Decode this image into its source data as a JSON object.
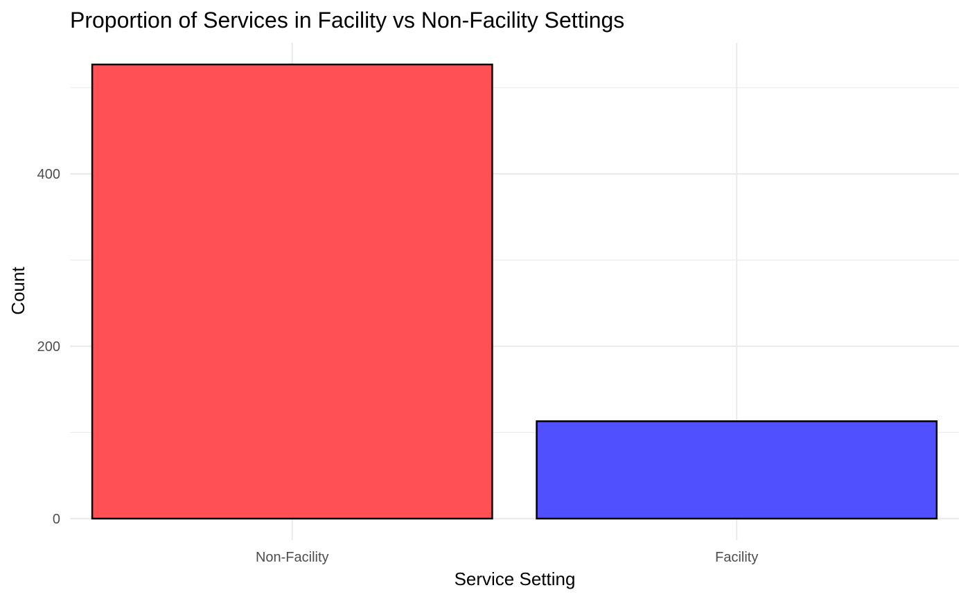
{
  "chart_data": {
    "type": "bar",
    "title": "Proportion of Services in Facility vs Non-Facility Settings",
    "xlabel": "Service Setting",
    "ylabel": "Count",
    "categories": [
      "Non-Facility",
      "Facility"
    ],
    "values": [
      527,
      113
    ],
    "colors": [
      "#ff4d52",
      "#4d4dff"
    ],
    "bar_outline_color": "#000000",
    "ylim": [
      -25,
      552
    ],
    "yticks": [
      0,
      200,
      400
    ],
    "yticks_minor": [
      100,
      300,
      500
    ],
    "grid": true,
    "legend": "none"
  }
}
